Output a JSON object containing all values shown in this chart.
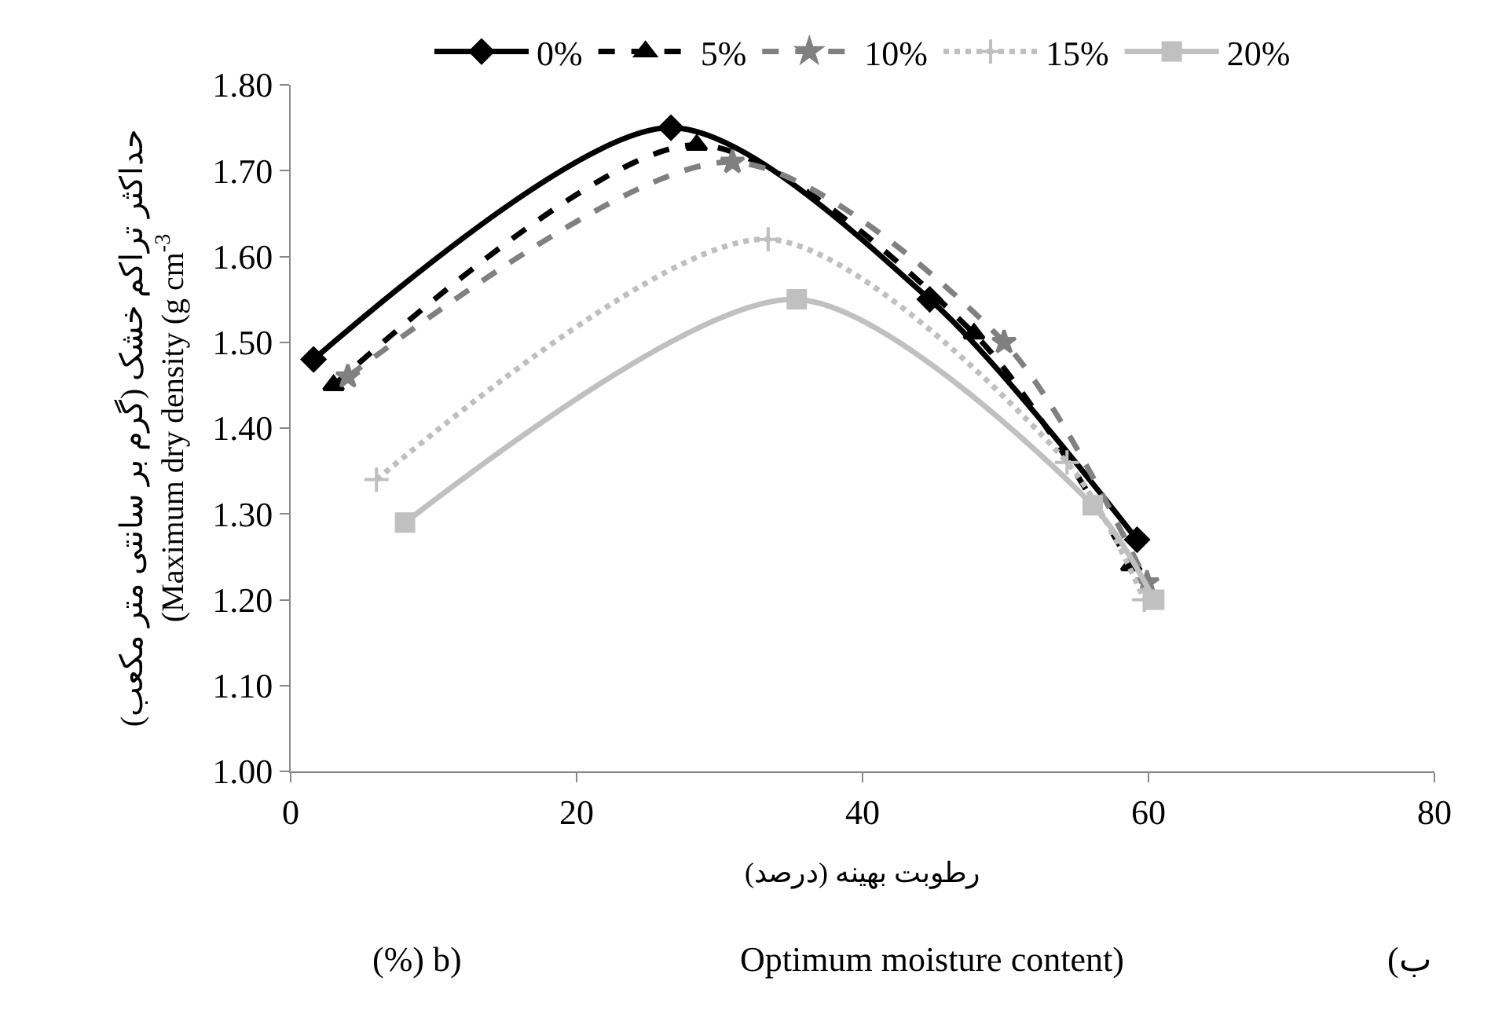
{
  "chart_data": {
    "type": "line",
    "xlabel": "رطوبت بهینه (درصد)",
    "ylabel": "حداکثر تراکم خشک (گرم بر سانتی متر مکعب)\n(Maximum dry density (g cm$^{-3}$",
    "annotations": [
      "(%) b)",
      "Optimum moisture content)",
      "(ب"
    ],
    "xlim": [
      0,
      80
    ],
    "xticks": [
      0,
      20,
      40,
      60,
      80
    ],
    "ylim": [
      1.0,
      1.8
    ],
    "yticks": [
      {
        "value": 1.0,
        "label": "1.00"
      },
      {
        "value": 1.1,
        "label": "1.10"
      },
      {
        "value": 1.2,
        "label": "1.20"
      },
      {
        "value": 1.3,
        "label": "1.30"
      },
      {
        "value": 1.4,
        "label": "1.40"
      },
      {
        "value": 1.5,
        "label": "1.50"
      },
      {
        "value": 1.6,
        "label": "1.60"
      },
      {
        "value": 1.7,
        "label": "1.70"
      },
      {
        "value": 1.8,
        "label": "1.80"
      }
    ],
    "legend": "top",
    "series": [
      {
        "name": "0%",
        "color": "#000000",
        "marker": "diamond",
        "line_style": "solid",
        "x": [
          1.6,
          26.6,
          44.7,
          59.2
        ],
        "values": [
          1.48,
          1.75,
          1.55,
          1.27
        ]
      },
      {
        "name": "5%",
        "color": "#000000",
        "marker": "triangle",
        "line_style": "dashed",
        "x": [
          3.0,
          28.4,
          47.8,
          58.8
        ],
        "values": [
          1.45,
          1.73,
          1.51,
          1.24
        ]
      },
      {
        "name": "10%",
        "color": "#808080",
        "marker": "star",
        "line_style": "dashed",
        "x": [
          4.0,
          30.9,
          49.9,
          59.9
        ],
        "values": [
          1.46,
          1.71,
          1.5,
          1.22
        ]
      },
      {
        "name": "15%",
        "color": "#bfbfbf",
        "marker": "cross",
        "line_style": "dotted",
        "x": [
          6.0,
          33.4,
          54.3,
          59.7
        ],
        "values": [
          1.34,
          1.62,
          1.36,
          1.2
        ]
      },
      {
        "name": "20%",
        "color": "#c0c0c0",
        "marker": "square",
        "line_style": "solid",
        "x": [
          8.0,
          35.4,
          56.1,
          60.4
        ],
        "values": [
          1.29,
          1.55,
          1.31,
          1.2
        ]
      }
    ]
  }
}
